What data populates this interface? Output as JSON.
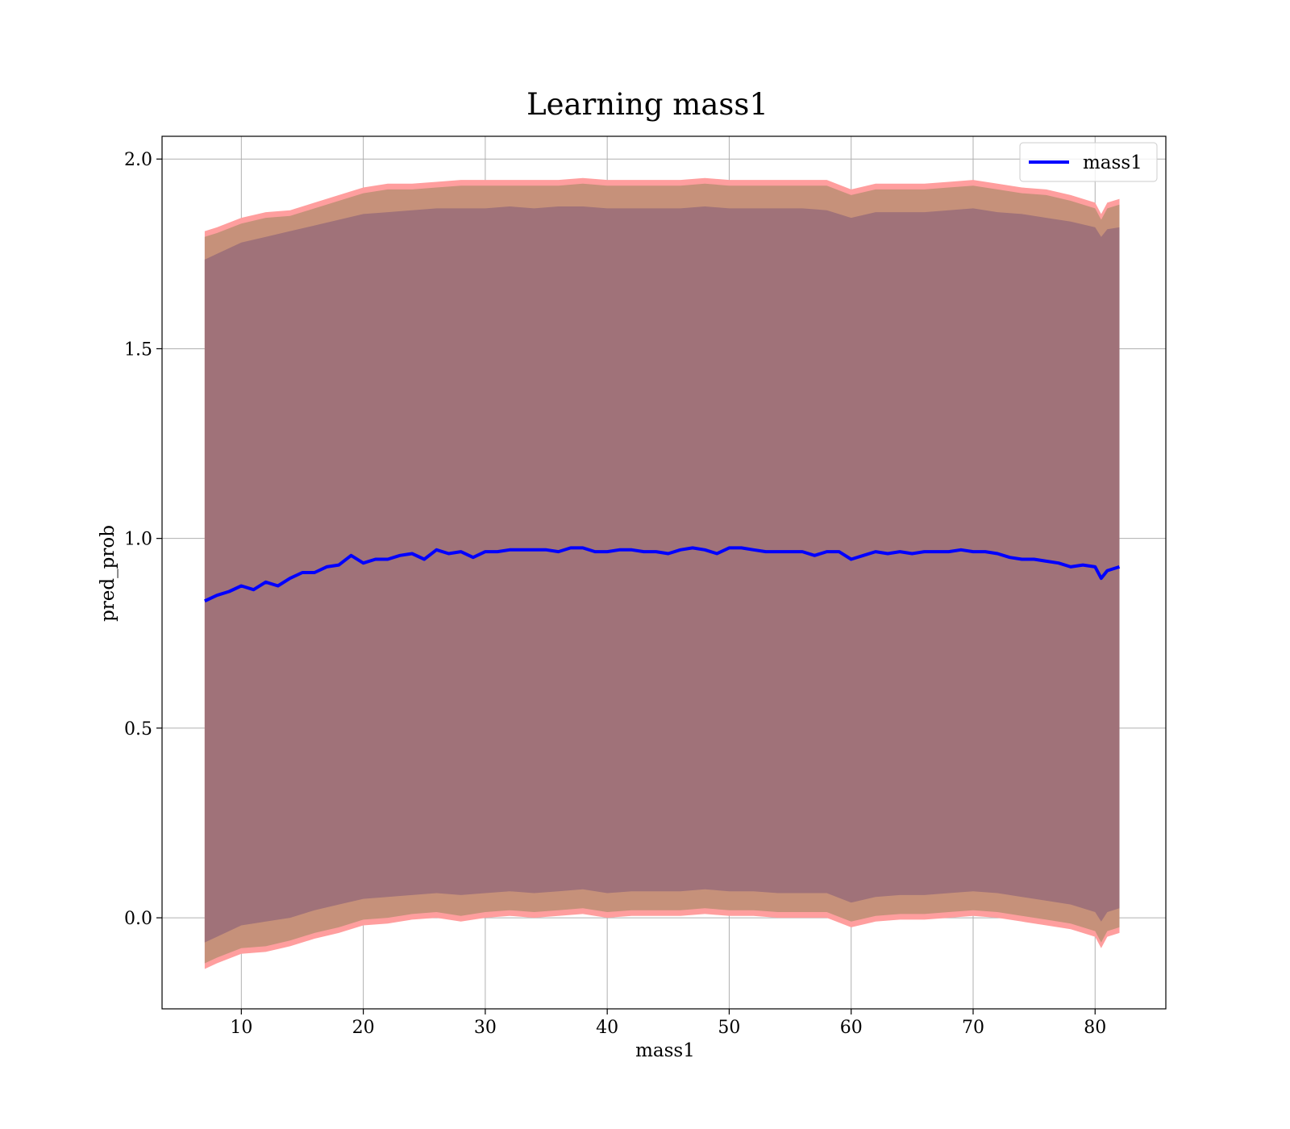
{
  "chart_data": {
    "type": "area",
    "title": "Learning mass1",
    "xlabel": "mass1",
    "ylabel": "pred_prob",
    "xlim": [
      3.5,
      85.8
    ],
    "ylim": [
      -0.24,
      2.06
    ],
    "xticks": [
      10,
      20,
      30,
      40,
      50,
      60,
      70,
      80
    ],
    "yticks": [
      0.0,
      0.5,
      1.0,
      1.5,
      2.0
    ],
    "xtick_labels": [
      "10",
      "20",
      "30",
      "40",
      "50",
      "60",
      "70",
      "80"
    ],
    "ytick_labels": [
      "0.0",
      "0.5",
      "1.0",
      "1.5",
      "2.0"
    ],
    "grid": true,
    "legend": {
      "position": "top-right",
      "entries": [
        "mass1"
      ]
    },
    "colors": {
      "mean_line": "#0000ff",
      "outer_band": "#ff9e9e",
      "middle_band": "#c6917a",
      "inner_band": "#a07279",
      "grid": "#b0b0b0"
    },
    "series": [
      {
        "name": "mass1",
        "role": "mean",
        "x": [
          7,
          8,
          9,
          10,
          11,
          12,
          13,
          14,
          15,
          16,
          17,
          18,
          19,
          20,
          21,
          22,
          23,
          24,
          25,
          26,
          27,
          28,
          29,
          30,
          31,
          32,
          33,
          34,
          35,
          36,
          37,
          38,
          39,
          40,
          41,
          42,
          43,
          44,
          45,
          46,
          47,
          48,
          49,
          50,
          51,
          52,
          53,
          54,
          55,
          56,
          57,
          58,
          59,
          60,
          61,
          62,
          63,
          64,
          65,
          66,
          67,
          68,
          69,
          70,
          71,
          72,
          73,
          74,
          75,
          76,
          77,
          78,
          79,
          80,
          80.5,
          81,
          82
        ],
        "y": [
          0.835,
          0.85,
          0.86,
          0.875,
          0.865,
          0.885,
          0.875,
          0.895,
          0.91,
          0.91,
          0.925,
          0.93,
          0.955,
          0.935,
          0.945,
          0.945,
          0.955,
          0.96,
          0.945,
          0.97,
          0.96,
          0.965,
          0.95,
          0.965,
          0.965,
          0.97,
          0.97,
          0.97,
          0.97,
          0.965,
          0.975,
          0.975,
          0.965,
          0.965,
          0.97,
          0.97,
          0.965,
          0.965,
          0.96,
          0.97,
          0.975,
          0.97,
          0.96,
          0.975,
          0.975,
          0.97,
          0.965,
          0.965,
          0.965,
          0.965,
          0.955,
          0.965,
          0.965,
          0.945,
          0.955,
          0.965,
          0.96,
          0.965,
          0.96,
          0.965,
          0.965,
          0.965,
          0.97,
          0.965,
          0.965,
          0.96,
          0.95,
          0.945,
          0.945,
          0.94,
          0.935,
          0.925,
          0.93,
          0.925,
          0.895,
          0.915,
          0.925
        ]
      }
    ],
    "bands": [
      {
        "role": "outer",
        "x": [
          7,
          8,
          10,
          12,
          14,
          16,
          18,
          20,
          22,
          24,
          26,
          28,
          30,
          32,
          34,
          36,
          38,
          40,
          42,
          44,
          46,
          48,
          50,
          52,
          54,
          56,
          58,
          60,
          62,
          64,
          66,
          68,
          70,
          72,
          74,
          76,
          78,
          80,
          80.5,
          81,
          82
        ],
        "lower": [
          -0.135,
          -0.12,
          -0.095,
          -0.09,
          -0.075,
          -0.055,
          -0.04,
          -0.02,
          -0.015,
          -0.005,
          0.0,
          -0.01,
          0.0,
          0.005,
          0.0,
          0.005,
          0.01,
          0.0,
          0.005,
          0.005,
          0.005,
          0.01,
          0.005,
          0.005,
          0.0,
          0.0,
          0.0,
          -0.025,
          -0.01,
          -0.005,
          -0.005,
          0.0,
          0.005,
          0.0,
          -0.01,
          -0.02,
          -0.03,
          -0.05,
          -0.08,
          -0.05,
          -0.04
        ],
        "upper": [
          1.81,
          1.82,
          1.845,
          1.86,
          1.865,
          1.885,
          1.905,
          1.925,
          1.935,
          1.935,
          1.94,
          1.945,
          1.945,
          1.945,
          1.945,
          1.945,
          1.95,
          1.945,
          1.945,
          1.945,
          1.945,
          1.95,
          1.945,
          1.945,
          1.945,
          1.945,
          1.945,
          1.92,
          1.935,
          1.935,
          1.935,
          1.94,
          1.945,
          1.935,
          1.925,
          1.92,
          1.905,
          1.885,
          1.855,
          1.885,
          1.895
        ]
      },
      {
        "role": "middle",
        "x": [
          7,
          8,
          10,
          12,
          14,
          16,
          18,
          20,
          22,
          24,
          26,
          28,
          30,
          32,
          34,
          36,
          38,
          40,
          42,
          44,
          46,
          48,
          50,
          52,
          54,
          56,
          58,
          60,
          62,
          64,
          66,
          68,
          70,
          72,
          74,
          76,
          78,
          80,
          80.5,
          81,
          82
        ],
        "lower": [
          -0.12,
          -0.105,
          -0.08,
          -0.075,
          -0.06,
          -0.04,
          -0.025,
          -0.005,
          0.0,
          0.01,
          0.015,
          0.005,
          0.015,
          0.02,
          0.015,
          0.02,
          0.025,
          0.015,
          0.02,
          0.02,
          0.02,
          0.025,
          0.02,
          0.02,
          0.015,
          0.015,
          0.015,
          -0.01,
          0.005,
          0.01,
          0.01,
          0.015,
          0.02,
          0.015,
          0.005,
          -0.005,
          -0.015,
          -0.035,
          -0.065,
          -0.035,
          -0.025
        ],
        "upper": [
          1.795,
          1.805,
          1.83,
          1.845,
          1.85,
          1.87,
          1.89,
          1.91,
          1.92,
          1.92,
          1.925,
          1.93,
          1.93,
          1.93,
          1.93,
          1.93,
          1.935,
          1.93,
          1.93,
          1.93,
          1.93,
          1.935,
          1.93,
          1.93,
          1.93,
          1.93,
          1.93,
          1.905,
          1.92,
          1.92,
          1.92,
          1.925,
          1.93,
          1.92,
          1.91,
          1.905,
          1.89,
          1.87,
          1.84,
          1.87,
          1.88
        ]
      },
      {
        "role": "inner",
        "x": [
          7,
          8,
          10,
          12,
          14,
          16,
          18,
          20,
          22,
          24,
          26,
          28,
          30,
          32,
          34,
          36,
          38,
          40,
          42,
          44,
          46,
          48,
          50,
          52,
          54,
          56,
          58,
          60,
          62,
          64,
          66,
          68,
          70,
          72,
          74,
          76,
          78,
          80,
          80.5,
          81,
          82
        ],
        "lower": [
          -0.065,
          -0.05,
          -0.02,
          -0.01,
          0.0,
          0.02,
          0.035,
          0.05,
          0.055,
          0.06,
          0.065,
          0.06,
          0.065,
          0.07,
          0.065,
          0.07,
          0.075,
          0.065,
          0.07,
          0.07,
          0.07,
          0.075,
          0.07,
          0.07,
          0.065,
          0.065,
          0.065,
          0.04,
          0.055,
          0.06,
          0.06,
          0.065,
          0.07,
          0.065,
          0.055,
          0.045,
          0.035,
          0.015,
          -0.01,
          0.015,
          0.025
        ],
        "upper": [
          1.735,
          1.75,
          1.78,
          1.795,
          1.81,
          1.825,
          1.84,
          1.855,
          1.86,
          1.865,
          1.87,
          1.87,
          1.87,
          1.875,
          1.87,
          1.875,
          1.875,
          1.87,
          1.87,
          1.87,
          1.87,
          1.875,
          1.87,
          1.87,
          1.87,
          1.87,
          1.865,
          1.845,
          1.86,
          1.86,
          1.86,
          1.865,
          1.87,
          1.86,
          1.855,
          1.845,
          1.835,
          1.82,
          1.795,
          1.815,
          1.82
        ]
      }
    ]
  }
}
